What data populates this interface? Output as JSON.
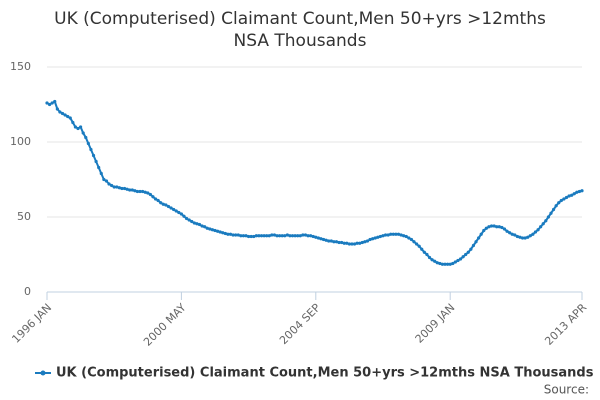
{
  "chart_data": {
    "type": "line",
    "title": "UK (Computerised) Claimant Count,Men 50+yrs >12mths NSA Thousands",
    "source": "Source:",
    "categories": [
      "1996 JAN",
      null,
      null,
      null,
      null,
      null,
      null,
      null,
      null,
      null,
      null,
      null,
      null,
      null,
      null,
      null,
      null,
      null,
      null,
      null,
      null,
      null,
      null,
      null,
      null,
      null,
      null,
      null,
      null,
      null,
      null,
      null,
      null,
      null,
      null,
      null,
      null,
      null,
      null,
      null,
      null,
      null,
      null,
      null,
      null,
      null,
      null,
      null,
      null,
      null,
      null,
      null,
      "2000 MAY",
      null,
      null,
      null,
      null,
      null,
      null,
      null,
      null,
      null,
      null,
      null,
      null,
      null,
      null,
      null,
      null,
      null,
      null,
      null,
      null,
      null,
      null,
      null,
      null,
      null,
      null,
      null,
      null,
      null,
      null,
      null,
      null,
      null,
      null,
      null,
      null,
      null,
      null,
      null,
      null,
      null,
      null,
      null,
      null,
      null,
      null,
      null,
      null,
      null,
      null,
      null,
      "2004 SEP",
      null,
      null,
      null,
      null,
      null,
      null,
      null,
      null,
      null,
      null,
      null,
      null,
      null,
      null,
      null,
      null,
      null,
      null,
      null,
      null,
      null,
      null,
      null,
      null,
      null,
      null,
      null,
      null,
      null,
      null,
      null,
      null,
      null,
      null,
      null,
      null,
      null,
      null,
      null,
      null,
      null,
      null,
      null,
      null,
      null,
      null,
      null,
      null,
      null,
      null,
      null,
      "2009 JAN",
      null,
      null,
      null,
      null,
      null,
      null,
      null,
      null,
      null,
      null,
      null,
      null,
      null,
      null,
      null,
      null,
      null,
      null,
      null,
      null,
      null,
      null,
      null,
      null,
      null,
      null,
      null,
      null,
      null,
      null,
      null,
      null,
      null,
      null,
      null,
      null,
      null,
      null,
      null,
      null,
      null,
      null,
      null,
      null,
      null,
      null,
      null,
      null,
      null,
      null,
      "2013 APR"
    ],
    "series": [
      {
        "name": "UK (Computerised) Claimant Count,Men 50+yrs >12mths NSA Thousands",
        "color": "#1a7bbf",
        "values": [
          126,
          125,
          126,
          127,
          122,
          120,
          119,
          118,
          117,
          116,
          113,
          110,
          109,
          110,
          106,
          103,
          99,
          95,
          91,
          87,
          83,
          79,
          75,
          74,
          72,
          71,
          70,
          70,
          69.5,
          69,
          69,
          68.5,
          68,
          68,
          67.5,
          67,
          67,
          67,
          66.5,
          66,
          65,
          63.5,
          62,
          61,
          59.5,
          58.5,
          58,
          57,
          56,
          55,
          54,
          53,
          52,
          50.5,
          49,
          48,
          47,
          46,
          45.5,
          45,
          44,
          43.5,
          42.5,
          42,
          41.5,
          41,
          40.5,
          40,
          39.5,
          39,
          38.5,
          38.5,
          38,
          38,
          38,
          37.5,
          37.5,
          37.5,
          37,
          37,
          37,
          37.5,
          37.5,
          37.5,
          37.5,
          37.5,
          37.5,
          38,
          38,
          37.5,
          37.5,
          37.5,
          37.5,
          38,
          37.5,
          37.5,
          37.5,
          37.5,
          37.5,
          38,
          38,
          37.5,
          37.5,
          37,
          36.5,
          36,
          35.5,
          35,
          34.5,
          34,
          34,
          33.5,
          33.5,
          33,
          33,
          32.5,
          32.5,
          32,
          32,
          32,
          32.5,
          32.5,
          33,
          33.5,
          34,
          35,
          35.5,
          36,
          36.5,
          37,
          37.5,
          38,
          38,
          38.5,
          38.5,
          38.5,
          38.5,
          38,
          37.5,
          37,
          36,
          35,
          33.5,
          32,
          30.5,
          28.5,
          26.5,
          25,
          23,
          21.5,
          20.5,
          19.5,
          19,
          18.5,
          18.5,
          18.5,
          18.5,
          19,
          20,
          21,
          22,
          23.5,
          25,
          26.5,
          28.5,
          31,
          33.5,
          36,
          38.5,
          41,
          42.5,
          43.5,
          44,
          44,
          43.5,
          43.5,
          43,
          42,
          40.5,
          39.5,
          38.5,
          38,
          37,
          36.5,
          36,
          36,
          36.5,
          37.5,
          38.5,
          40,
          41.5,
          43.5,
          45.5,
          47.5,
          50,
          52.5,
          55,
          57.5,
          59.5,
          61,
          62,
          63,
          64,
          64.5,
          65.5,
          66.5,
          67,
          67.5
        ]
      }
    ],
    "ylim": [
      0,
      150
    ],
    "yticks": [
      0,
      50,
      100,
      150
    ],
    "grid": true,
    "legend": "bottom"
  }
}
